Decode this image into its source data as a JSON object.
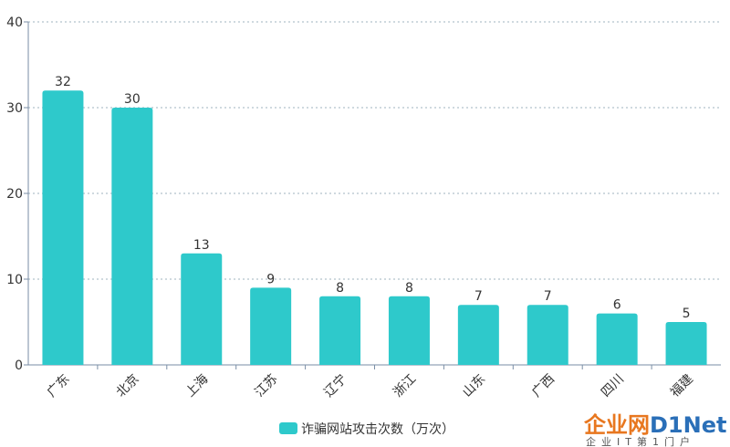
{
  "chart_data": {
    "type": "bar",
    "categories": [
      "广东",
      "北京",
      "上海",
      "江苏",
      "辽宁",
      "浙江",
      "山东",
      "广西",
      "四川",
      "福建"
    ],
    "series": [
      {
        "name": "诈骗网站攻击次数（万次）",
        "values": [
          32,
          30,
          13,
          9,
          8,
          8,
          7,
          7,
          6,
          5
        ]
      }
    ],
    "ylim": [
      0,
      40
    ],
    "yticks": [
      0,
      10,
      20,
      30,
      40
    ],
    "grid": true,
    "legend": "bottom-center",
    "bar_color": "#2ec9cb",
    "data_labels": true
  },
  "watermark": {
    "brand_cn": "企业网",
    "brand_en": "D1Net",
    "tagline": "企业IT第1门户",
    "colors": {
      "orange": "#e8771f",
      "blue": "#2a6fb8"
    }
  }
}
